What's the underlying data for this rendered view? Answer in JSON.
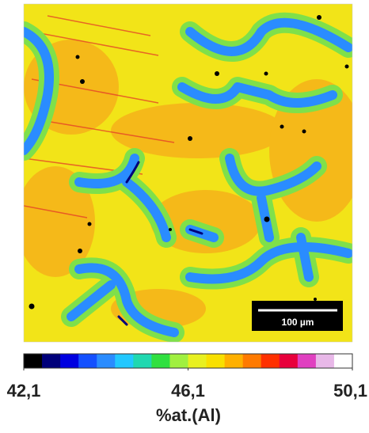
{
  "image": {
    "scale_bar": "100 µm"
  },
  "colorbar": {
    "colors": [
      "#000000",
      "#00007a",
      "#0000e0",
      "#1450ff",
      "#2a8cff",
      "#22c8ff",
      "#20d8b0",
      "#30e040",
      "#a0f040",
      "#e8f020",
      "#f8e000",
      "#ffb000",
      "#ff7a00",
      "#ff3000",
      "#e8003c",
      "#e040c0",
      "#e8b8e8",
      "#ffffff"
    ],
    "lim": [
      {
        "value": 42.1,
        "label": "42,1"
      },
      {
        "value": 50.1,
        "label": "50,1"
      }
    ],
    "ticks": [
      {
        "value": 42.1,
        "label": "42,1"
      },
      {
        "value": 46.1,
        "label": "46,1"
      },
      {
        "value": 50.1,
        "label": "50,1"
      }
    ],
    "label": "%at.(Al)"
  }
}
